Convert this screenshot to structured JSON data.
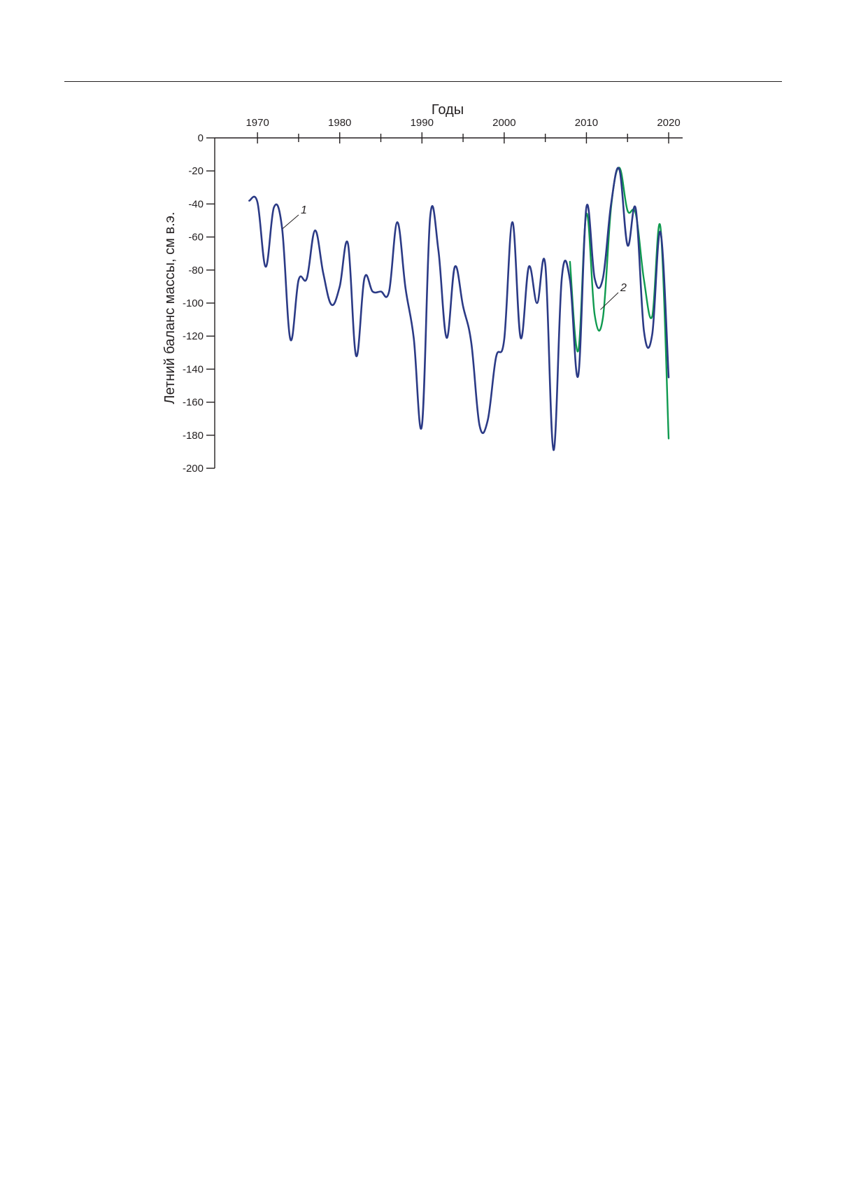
{
  "chart_data": {
    "type": "line",
    "title": "",
    "xlabel": "Годы",
    "ylabel": "Летний баланс массы, см в.э.",
    "xlim": [
      1964.8,
      2021.7
    ],
    "ylim": [
      -200,
      0
    ],
    "x_ticks": [
      1970,
      1980,
      1990,
      2000,
      2010,
      2020
    ],
    "x_minor_ticks": [
      1975,
      1985,
      1995,
      2005,
      2015
    ],
    "x_tick_labels": [
      "1970",
      "1980",
      "1990",
      "2000",
      "2010",
      "2020"
    ],
    "y_ticks": [
      0,
      -20,
      -40,
      -60,
      -80,
      -100,
      -120,
      -140,
      -160,
      -180,
      -200
    ],
    "y_tick_labels": [
      "0",
      "-20",
      "-40",
      "-60",
      "-80",
      "-100",
      "-120",
      "-140",
      "-160",
      "-180",
      "-200"
    ],
    "legend": "inline callouts",
    "grid": false,
    "series": [
      {
        "name": "1",
        "color": "#2b3a86",
        "x": [
          1969,
          1970,
          1971,
          1972,
          1973,
          1974,
          1975,
          1976,
          1977,
          1978,
          1979,
          1980,
          1981,
          1982,
          1983,
          1984,
          1985,
          1986,
          1987,
          1988,
          1989,
          1990,
          1991,
          1992,
          1993,
          1994,
          1995,
          1996,
          1997,
          1998,
          1999,
          2000,
          2001,
          2002,
          2003,
          2004,
          2005,
          2006,
          2007,
          2008,
          2009,
          2010,
          2011,
          2012,
          2013,
          2014,
          2015,
          2016,
          2017,
          2018,
          2019,
          2020
        ],
        "y": [
          -38,
          -39,
          -78,
          -42,
          -55,
          -122,
          -86,
          -85,
          -56,
          -82,
          -101,
          -90,
          -64,
          -132,
          -85,
          -93,
          -93,
          -93,
          -51,
          -91,
          -121,
          -174,
          -48,
          -68,
          -121,
          -78,
          -102,
          -124,
          -174,
          -171,
          -133,
          -122,
          -51,
          -121,
          -78,
          -100,
          -77,
          -189,
          -85,
          -86,
          -144,
          -42,
          -85,
          -85,
          -40,
          -19,
          -65,
          -43,
          -117,
          -119,
          -57,
          -145
        ]
      },
      {
        "name": "2",
        "color": "#0f9a4f",
        "x": [
          2008,
          2009,
          2010,
          2011,
          2012,
          2013,
          2014,
          2015,
          2016,
          2017,
          2018,
          2019,
          2020
        ],
        "y": [
          -75,
          -129,
          -46,
          -107,
          -109,
          -42,
          -18,
          -44,
          -46,
          -86,
          -108,
          -54,
          -182
        ]
      }
    ],
    "annotations": [
      {
        "text": "1",
        "series": "1"
      },
      {
        "text": "2",
        "series": "2"
      }
    ]
  }
}
